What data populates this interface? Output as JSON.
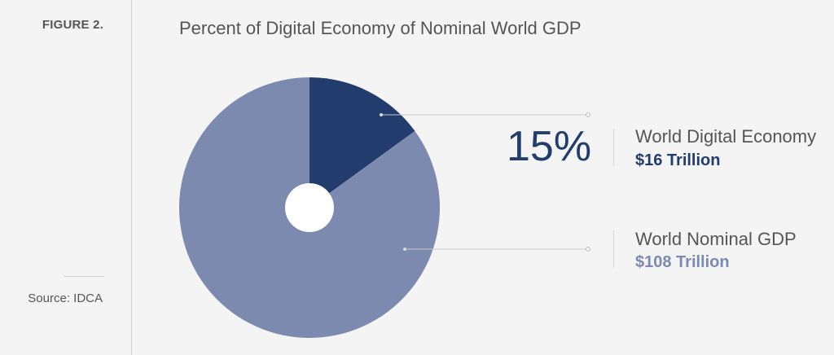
{
  "sidebar": {
    "figure_label": "FIGURE 2.",
    "source": "Source: IDCA"
  },
  "chart_data": {
    "type": "pie",
    "title": "Percent of Digital Economy of Nominal World GDP",
    "highlight_label": "15%",
    "slices": [
      {
        "name": "World Digital Economy",
        "value": 16,
        "value_label": "$16 Trillion",
        "percent": 15,
        "color": "#223d6d"
      },
      {
        "name": "World Nominal GDP",
        "value": 108,
        "value_label": "$108 Trillion",
        "percent": 85,
        "color": "#7b8aae"
      }
    ],
    "legend_placement": "right",
    "center_hole": true
  }
}
